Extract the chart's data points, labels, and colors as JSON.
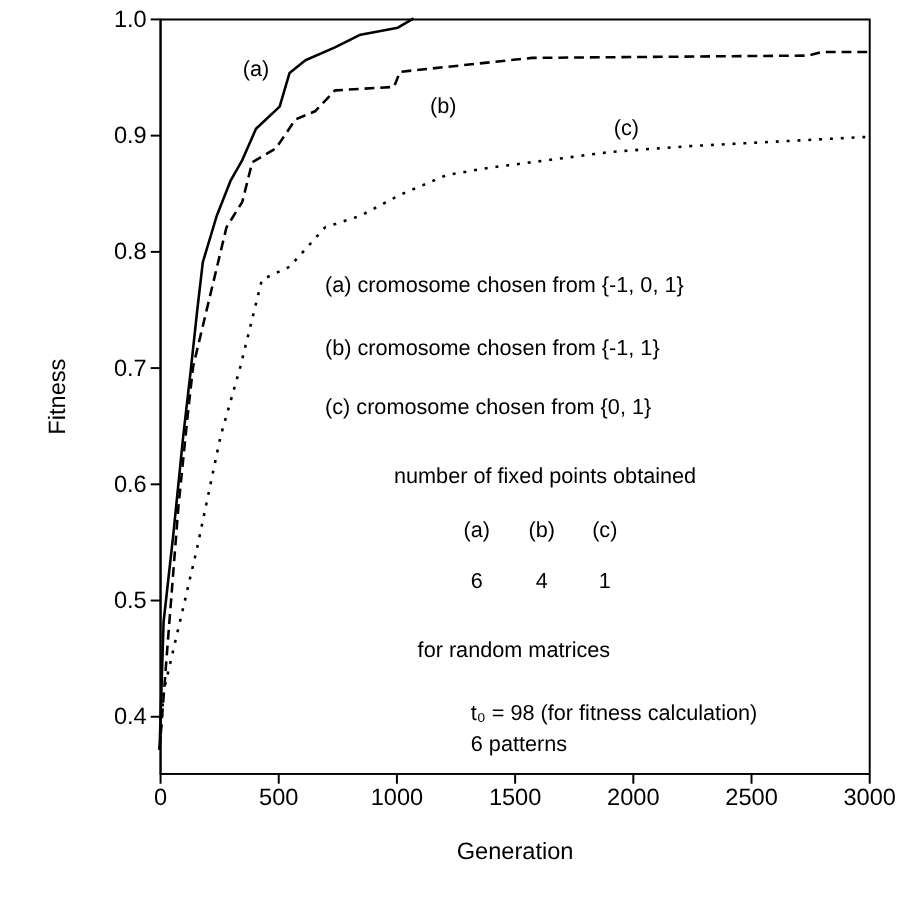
{
  "chart_data": {
    "type": "line",
    "xlabel": "Generation",
    "ylabel": "Fitness",
    "xlim": [
      0,
      3000
    ],
    "ylim": [
      0.35,
      1.0
    ],
    "xticks": [
      0,
      500,
      1000,
      1500,
      2000,
      2500,
      3000
    ],
    "yticks": [
      0.4,
      0.5,
      0.6,
      0.7,
      0.8,
      0.9,
      {
        "value": 1.0,
        "label": "1.0"
      }
    ],
    "grid": false,
    "series": [
      {
        "color": "#000000",
        "line_style": "solid",
        "x": [
          0,
          17,
          58,
          100,
          131,
          158,
          183,
          242,
          300,
          350,
          408,
          508,
          550,
          617,
          742,
          850,
          1008,
          1075
        ],
        "values": [
          0.37,
          0.48,
          0.555,
          0.64,
          0.695,
          0.746,
          0.79,
          0.83,
          0.86,
          0.878,
          0.905,
          0.924,
          0.953,
          0.964,
          0.975,
          0.986,
          0.992,
          1.0
        ]
      },
      {
        "color": "#000000",
        "line_style": "dashed",
        "x": [
          0,
          30,
          80,
          120,
          142,
          183,
          283,
          350,
          392,
          492,
          575,
          658,
          742,
          992,
          1017,
          1575,
          2742,
          2800,
          3000
        ],
        "values": [
          0.37,
          0.45,
          0.58,
          0.66,
          0.7,
          0.735,
          0.82,
          0.842,
          0.876,
          0.888,
          0.913,
          0.92,
          0.938,
          0.941,
          0.954,
          0.966,
          0.968,
          0.971,
          0.971
        ]
      },
      {
        "color": "#000000",
        "line_style": "dotted",
        "x": [
          0,
          17,
          158,
          258,
          342,
          433,
          550,
          700,
          850,
          1017,
          1214,
          1383,
          1908,
          2242,
          3000
        ],
        "values": [
          0.37,
          0.42,
          0.543,
          0.64,
          0.7,
          0.775,
          0.786,
          0.82,
          0.83,
          0.848,
          0.865,
          0.871,
          0.885,
          0.89,
          0.898
        ]
      }
    ],
    "annotations": [
      "(a)",
      "(b)",
      "(c)",
      "(a) cromosome chosen from {-1, 0, 1}",
      "(b) cromosome chosen from {-1, 1}",
      "(c) cromosome chosen from {0, 1}",
      "number of fixed points obtained",
      "(a)",
      "(b)",
      "(c)",
      "6",
      "4",
      "1",
      "for random matrices",
      "t₀ = 98 (for fitness calculation)",
      "6 patterns"
    ]
  }
}
